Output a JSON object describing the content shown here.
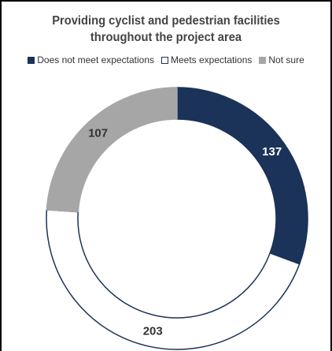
{
  "chart_data": {
    "type": "donut",
    "title": [
      "Providing cyclist and pedestrian facilities",
      "throughout the project area"
    ],
    "categories": [
      "Does not meet expectations",
      "Meets expectations",
      "Not sure"
    ],
    "values": [
      137,
      203,
      107
    ],
    "colors": [
      "#1b3358",
      "#ffffff",
      "#a6a6a6"
    ],
    "legend": "top"
  }
}
